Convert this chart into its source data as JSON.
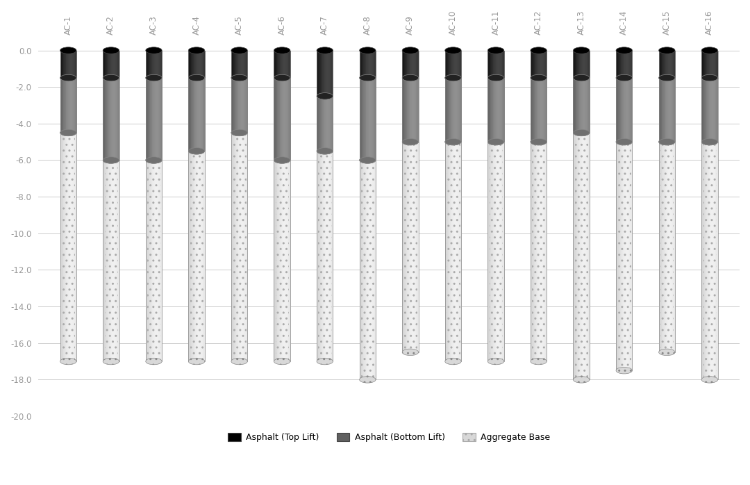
{
  "categories": [
    "AC-1",
    "AC-2",
    "AC-3",
    "AC-4",
    "AC-5",
    "AC-6",
    "AC-7",
    "AC-8",
    "AC-9",
    "AC-10",
    "AC-11",
    "AC-12",
    "AC-13",
    "AC-14",
    "AC-15",
    "AC-16"
  ],
  "top_lift": [
    1.5,
    1.5,
    1.5,
    1.5,
    1.5,
    1.5,
    2.5,
    1.5,
    1.5,
    1.5,
    1.5,
    1.5,
    1.5,
    1.5,
    1.5,
    1.5
  ],
  "bottom_lift": [
    3.0,
    4.5,
    4.5,
    4.0,
    3.0,
    4.5,
    3.0,
    4.5,
    3.5,
    3.5,
    3.5,
    3.5,
    3.0,
    3.5,
    3.5,
    3.5
  ],
  "agg_base": [
    12.5,
    11.0,
    11.0,
    11.5,
    12.5,
    11.0,
    11.5,
    12.0,
    11.5,
    12.0,
    12.0,
    12.0,
    13.5,
    12.5,
    11.5,
    13.0
  ],
  "ylim_min": -20,
  "ylim_max": 0.5,
  "yticks": [
    0.0,
    -2.0,
    -4.0,
    -6.0,
    -8.0,
    -10.0,
    -12.0,
    -14.0,
    -16.0,
    -18.0,
    -20.0
  ],
  "background_color": "#ffffff",
  "legend_labels": [
    "Asphalt (Top Lift)",
    "Asphalt (Bottom Lift)",
    "Aggregate Base"
  ],
  "bar_width": 0.38,
  "grid_color": "#cccccc",
  "tick_color": "#999999",
  "fontsize_ticks": 8.5,
  "fontsize_xlabel": 8.5,
  "top_lift_dark": "#000000",
  "top_lift_light": "#444444",
  "bottom_lift_dark": "#505050",
  "bottom_lift_light": "#909090",
  "agg_dark": "#c8c8c8",
  "agg_light": "#f0f0f0",
  "agg_mid": "#d8d8d8"
}
